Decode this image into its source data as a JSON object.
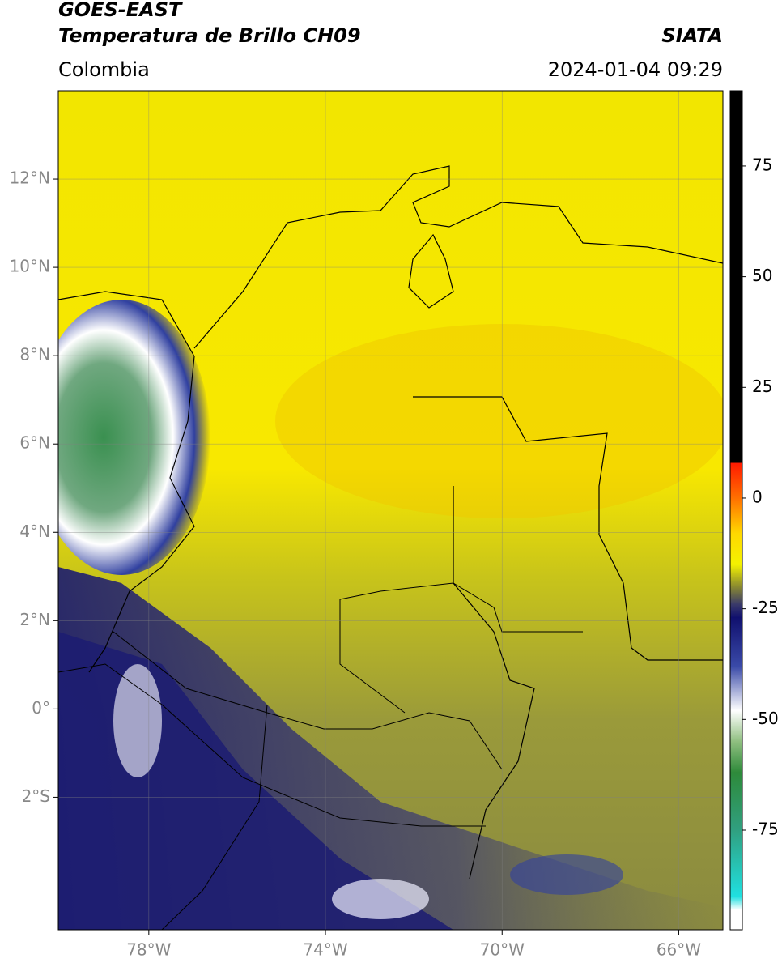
{
  "header": {
    "line1": "GOES-EAST",
    "line2": "Temperatura de Brillo CH09",
    "region": "Colombia",
    "source": "SIATA",
    "datetime": "2024-01-04 09:29"
  },
  "map": {
    "xlim": [
      -80.05,
      -65
    ],
    "ylim": [
      -5,
      14
    ],
    "xticks": [
      {
        "value": -78,
        "label": "78°W"
      },
      {
        "value": -74,
        "label": "74°W"
      },
      {
        "value": -70,
        "label": "70°W"
      },
      {
        "value": -66,
        "label": "66°W"
      }
    ],
    "yticks": [
      {
        "value": 12,
        "label": "12°N"
      },
      {
        "value": 10,
        "label": "10°N"
      },
      {
        "value": 8,
        "label": "8°N"
      },
      {
        "value": 6,
        "label": "6°N"
      },
      {
        "value": 4,
        "label": "4°N"
      },
      {
        "value": 2,
        "label": "2°N"
      },
      {
        "value": 0,
        "label": "0°"
      },
      {
        "value": -2,
        "label": "2°S"
      }
    ],
    "grid": true
  },
  "colorbar": {
    "lim": [
      -97.5,
      92
    ],
    "ticks": [
      75,
      50,
      25,
      0,
      -25,
      -50,
      -75
    ],
    "stops": [
      {
        "value": 92,
        "color": "#000000"
      },
      {
        "value": 8,
        "color": "#000000"
      },
      {
        "value": 7.9,
        "color": "#ff1a00"
      },
      {
        "value": 0,
        "color": "#ff7000"
      },
      {
        "value": -8,
        "color": "#ffd800"
      },
      {
        "value": -15,
        "color": "#f4f200"
      },
      {
        "value": -20,
        "color": "#8a8a30"
      },
      {
        "value": -24,
        "color": "#3a3a6a"
      },
      {
        "value": -27,
        "color": "#10106e"
      },
      {
        "value": -38,
        "color": "#3a4aa8"
      },
      {
        "value": -48,
        "color": "#ffffff"
      },
      {
        "value": -55,
        "color": "#8fbf80"
      },
      {
        "value": -62,
        "color": "#2e8a3a"
      },
      {
        "value": -75,
        "color": "#30a080"
      },
      {
        "value": -90,
        "color": "#20e0e0"
      },
      {
        "value": -93,
        "color": "#ffffff"
      },
      {
        "value": -97.5,
        "color": "#ffffff"
      }
    ]
  }
}
